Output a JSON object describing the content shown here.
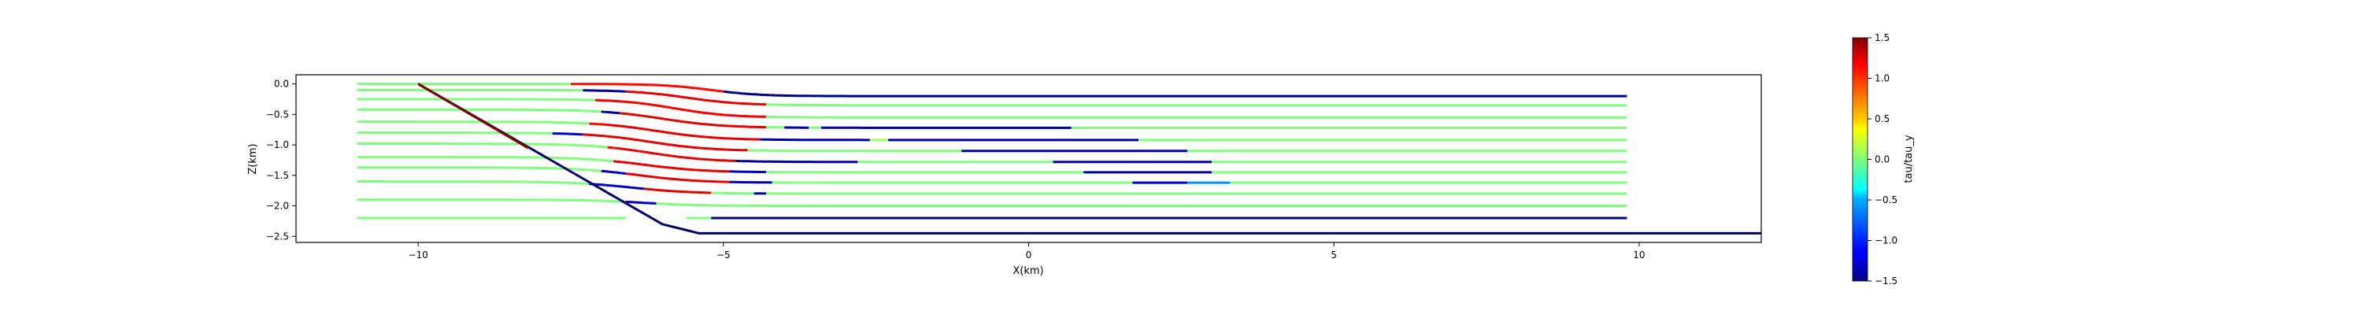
{
  "chart_data": {
    "type": "line",
    "xlabel": "X(km)",
    "ylabel": "Z(km)",
    "xlim": [
      -12,
      12
    ],
    "ylim": [
      -2.6,
      0.15
    ],
    "xticks": [
      -10,
      -5,
      0,
      5,
      10
    ],
    "xtick_labels": [
      "−10",
      "−5",
      "0",
      "5",
      "10"
    ],
    "yticks": [
      0.0,
      -0.5,
      -1.0,
      -1.5,
      -2.0,
      -2.5
    ],
    "ytick_labels": [
      "0.0",
      "−0.5",
      "−1.0",
      "−1.5",
      "−2.0",
      "−2.5"
    ],
    "grid": false,
    "colorbar": {
      "label": "tau/tau_y",
      "range": [
        -1.5,
        1.5
      ],
      "ticks": [
        1.5,
        1.0,
        0.5,
        0.0,
        -0.5,
        -1.0,
        -1.5
      ],
      "tick_labels": [
        "1.5",
        "1.0",
        "0.5",
        "0.0",
        "−0.5",
        "−1.0",
        "−1.5"
      ],
      "colormap": "jet"
    },
    "boundary": {
      "color": "#000066",
      "x": [
        -10,
        -6.0,
        -5.6,
        -5.4,
        12
      ],
      "y": [
        0.0,
        -2.3,
        -2.4,
        -2.45,
        -2.45
      ]
    },
    "fault_overlay": {
      "color": "#800000",
      "x": [
        -10,
        -8.2
      ],
      "y": [
        0.0,
        -1.05
      ]
    },
    "streamlines": [
      {
        "z": -0.2,
        "x0": -11,
        "x1": 9.8,
        "bend_x": -5.2,
        "bend_w": 0.8,
        "bend_dz": 0.2,
        "segments": [
          [
            -11,
            -7.5,
            0
          ],
          [
            -7.5,
            -5.0,
            1.1
          ],
          [
            -5.0,
            9.8,
            -1.5
          ]
        ]
      },
      {
        "z": -0.35,
        "x0": -11,
        "x1": 9.8,
        "bend_x": -5.6,
        "bend_w": 0.9,
        "bend_dz": 0.25,
        "segments": [
          [
            -11,
            -7.3,
            0
          ],
          [
            -7.3,
            -6.6,
            -1.4
          ],
          [
            -6.6,
            -4.3,
            1.2
          ],
          [
            -4.3,
            9.8,
            0
          ]
        ]
      },
      {
        "z": -0.55,
        "x0": -11,
        "x1": 9.8,
        "bend_x": -5.8,
        "bend_w": 0.9,
        "bend_dz": 0.3,
        "segments": [
          [
            -11,
            -7.1,
            0
          ],
          [
            -7.1,
            -4.3,
            1.15
          ],
          [
            -4.3,
            9.8,
            0
          ]
        ]
      },
      {
        "z": -0.72,
        "x0": -11,
        "x1": 9.8,
        "bend_x": -6.0,
        "bend_w": 1.0,
        "bend_dz": 0.3,
        "segments": [
          [
            -11,
            -7.0,
            0
          ],
          [
            -7.0,
            -6.7,
            -1.4
          ],
          [
            -6.7,
            -4.3,
            1.2
          ],
          [
            -4.3,
            -4.0,
            0
          ],
          [
            -4.0,
            -3.6,
            -1.4
          ],
          [
            -3.6,
            -3.4,
            0
          ],
          [
            -3.4,
            0.7,
            -1.4
          ],
          [
            0.7,
            9.8,
            0
          ]
        ]
      },
      {
        "z": -0.92,
        "x0": -11,
        "x1": 9.8,
        "bend_x": -6.1,
        "bend_w": 1.0,
        "bend_dz": 0.3,
        "segments": [
          [
            -11,
            -7.2,
            0
          ],
          [
            -7.2,
            -6.9,
            1.1
          ],
          [
            -6.9,
            -4.4,
            1.2
          ],
          [
            -4.4,
            -2.6,
            -1.4
          ],
          [
            -2.6,
            -2.3,
            0.1
          ],
          [
            -2.3,
            1.8,
            -1.4
          ],
          [
            1.8,
            9.8,
            0
          ]
        ]
      },
      {
        "z": -1.1,
        "x0": -11,
        "x1": 9.8,
        "bend_x": -6.2,
        "bend_w": 1.0,
        "bend_dz": 0.3,
        "segments": [
          [
            -11,
            -7.8,
            0
          ],
          [
            -7.8,
            -7.3,
            -1.3
          ],
          [
            -7.3,
            -4.6,
            1.2
          ],
          [
            -4.6,
            -1.1,
            0
          ],
          [
            -1.1,
            2.6,
            -1.4
          ],
          [
            2.6,
            9.8,
            0
          ]
        ]
      },
      {
        "z": -1.28,
        "x0": -11,
        "x1": 9.8,
        "bend_x": -6.2,
        "bend_w": 1.0,
        "bend_dz": 0.3,
        "segments": [
          [
            -11,
            -6.9,
            0
          ],
          [
            -6.9,
            -6.7,
            1.1
          ],
          [
            -6.7,
            -4.8,
            1.2
          ],
          [
            -4.8,
            -2.8,
            -1.4
          ],
          [
            -2.8,
            0.4,
            0
          ],
          [
            0.4,
            3.0,
            -1.4
          ],
          [
            3.0,
            9.8,
            0
          ]
        ]
      },
      {
        "z": -1.45,
        "x0": -11,
        "x1": 9.8,
        "bend_x": -6.3,
        "bend_w": 1.0,
        "bend_dz": 0.25,
        "segments": [
          [
            -11,
            -6.8,
            0
          ],
          [
            -6.8,
            -4.9,
            1.2
          ],
          [
            -4.9,
            -4.3,
            -1.3
          ],
          [
            -4.3,
            0.9,
            0
          ],
          [
            0.9,
            3.0,
            -1.4
          ],
          [
            3.0,
            9.8,
            0
          ]
        ]
      },
      {
        "z": -1.62,
        "x0": -11,
        "x1": 9.8,
        "bend_x": -6.4,
        "bend_w": 1.0,
        "bend_dz": 0.25,
        "segments": [
          [
            -11,
            -7.0,
            0
          ],
          [
            -7.0,
            -6.6,
            -1.3
          ],
          [
            -6.6,
            -4.9,
            1.2
          ],
          [
            -4.9,
            -4.2,
            -1.4
          ],
          [
            -4.2,
            1.7,
            0
          ],
          [
            1.7,
            2.6,
            -1.3
          ],
          [
            2.6,
            3.3,
            -0.7
          ],
          [
            3.3,
            9.8,
            0
          ]
        ]
      },
      {
        "z": -1.8,
        "x0": -11,
        "x1": 9.8,
        "bend_x": -6.5,
        "bend_w": 1.0,
        "bend_dz": 0.2,
        "segments": [
          [
            -11,
            -7.2,
            0
          ],
          [
            -7.2,
            -6.3,
            -1.3
          ],
          [
            -6.3,
            -5.2,
            1.2
          ],
          [
            -5.2,
            -4.5,
            0
          ],
          [
            -4.5,
            -4.3,
            -1.4
          ],
          [
            -4.3,
            9.8,
            0
          ]
        ]
      },
      {
        "z": -2.0,
        "x0": -11,
        "x1": 9.8,
        "bend_x": -6.3,
        "bend_w": 0.9,
        "bend_dz": 0.1,
        "segments": [
          [
            -11,
            -6.6,
            0
          ],
          [
            -6.6,
            -6.1,
            -1.3
          ],
          [
            -6.1,
            -5.0,
            0
          ],
          [
            -5.0,
            9.8,
            0
          ]
        ]
      },
      {
        "z": -2.2,
        "x0": -11,
        "x1": 9.8,
        "bend_x": -5.6,
        "bend_w": 0.4,
        "bend_dz": 0.0,
        "segments": [
          [
            -11,
            -6.6,
            0
          ],
          [
            -5.6,
            -5.2,
            0
          ],
          [
            -5.2,
            9.8,
            -1.5
          ]
        ]
      }
    ]
  }
}
